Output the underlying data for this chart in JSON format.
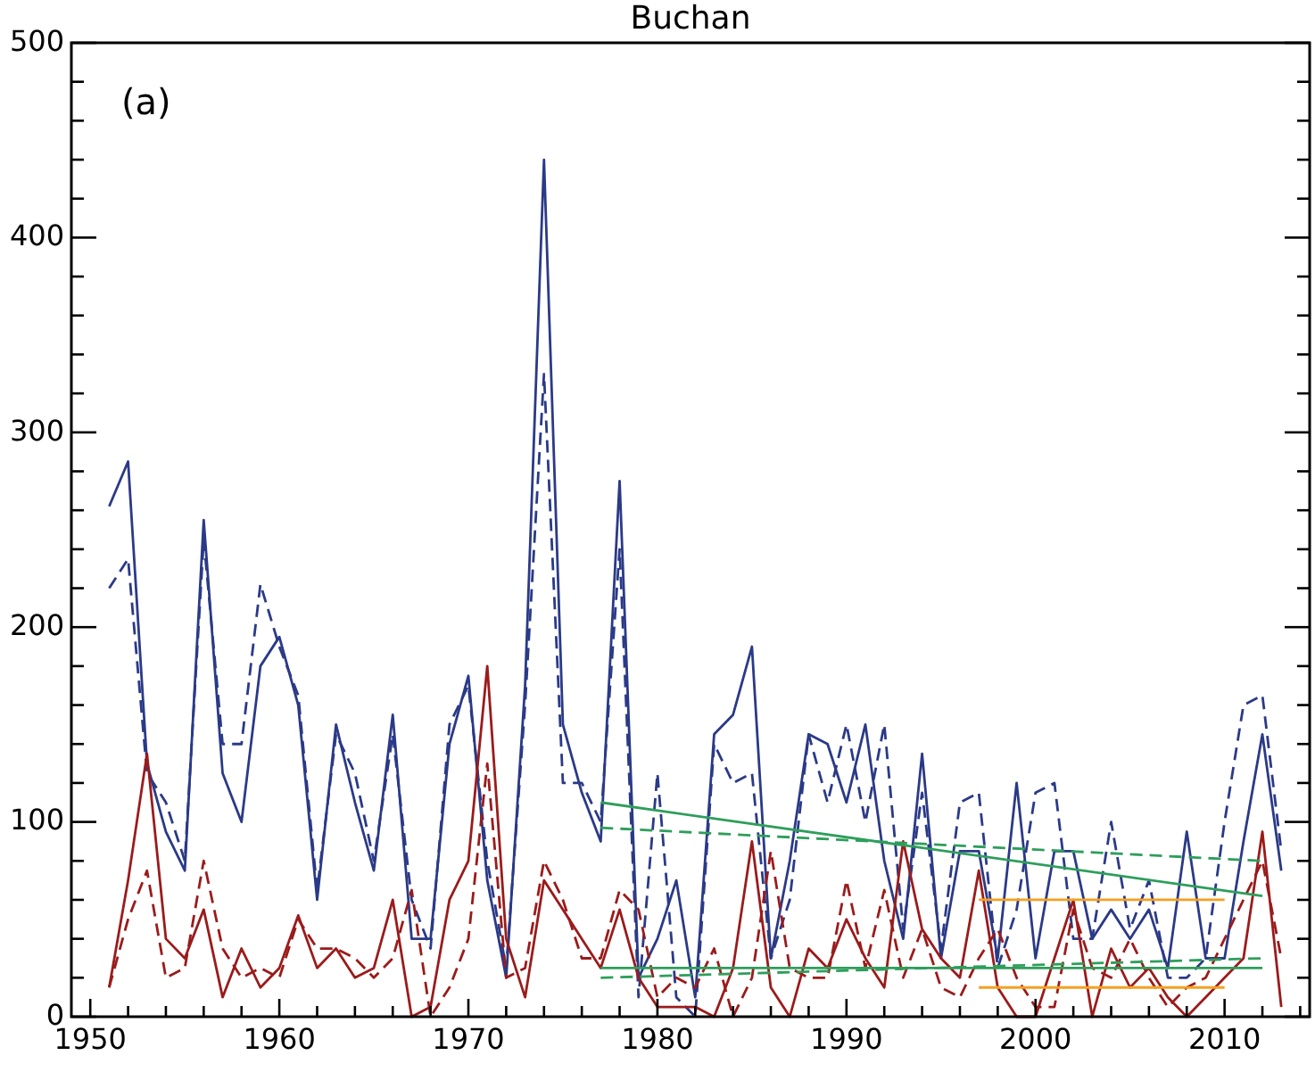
{
  "chart_data": {
    "type": "line",
    "title": "Buchan",
    "annotations": [
      "(a)"
    ],
    "x": [
      1951,
      1952,
      1953,
      1954,
      1955,
      1956,
      1957,
      1958,
      1959,
      1960,
      1961,
      1962,
      1963,
      1964,
      1965,
      1966,
      1967,
      1968,
      1969,
      1970,
      1971,
      1972,
      1973,
      1974,
      1975,
      1976,
      1977,
      1978,
      1979,
      1980,
      1981,
      1982,
      1983,
      1984,
      1985,
      1986,
      1987,
      1988,
      1989,
      1990,
      1991,
      1992,
      1993,
      1994,
      1995,
      1996,
      1997,
      1998,
      1999,
      2000,
      2001,
      2002,
      2003,
      2004,
      2005,
      2006,
      2007,
      2008,
      2009,
      2010,
      2011,
      2012,
      2013
    ],
    "xlim": [
      1949,
      2014.5
    ],
    "xticks": [
      {
        "value": 1950,
        "label": "1950"
      },
      {
        "value": 1952,
        "label": null
      },
      {
        "value": 1954,
        "label": null
      },
      {
        "value": 1956,
        "label": null
      },
      {
        "value": 1958,
        "label": null
      },
      {
        "value": 1960,
        "label": "1960"
      },
      {
        "value": 1962,
        "label": null
      },
      {
        "value": 1964,
        "label": null
      },
      {
        "value": 1966,
        "label": null
      },
      {
        "value": 1968,
        "label": null
      },
      {
        "value": 1970,
        "label": "1970"
      },
      {
        "value": 1972,
        "label": null
      },
      {
        "value": 1974,
        "label": null
      },
      {
        "value": 1976,
        "label": null
      },
      {
        "value": 1978,
        "label": null
      },
      {
        "value": 1980,
        "label": "1980"
      },
      {
        "value": 1982,
        "label": null
      },
      {
        "value": 1984,
        "label": null
      },
      {
        "value": 1986,
        "label": null
      },
      {
        "value": 1988,
        "label": null
      },
      {
        "value": 1990,
        "label": "1990"
      },
      {
        "value": 1992,
        "label": null
      },
      {
        "value": 1994,
        "label": null
      },
      {
        "value": 1996,
        "label": null
      },
      {
        "value": 1998,
        "label": null
      },
      {
        "value": 2000,
        "label": "2000"
      },
      {
        "value": 2002,
        "label": null
      },
      {
        "value": 2004,
        "label": null
      },
      {
        "value": 2006,
        "label": null
      },
      {
        "value": 2008,
        "label": null
      },
      {
        "value": 2010,
        "label": "2010"
      },
      {
        "value": 2012,
        "label": null
      },
      {
        "value": 2014,
        "label": null
      }
    ],
    "ylim": [
      0,
      500
    ],
    "yticks": [
      0,
      {
        "value": 20,
        "label": null
      },
      {
        "value": 40,
        "label": null
      },
      {
        "value": 60,
        "label": null
      },
      {
        "value": 80,
        "label": null
      },
      100,
      {
        "value": 120,
        "label": null
      },
      {
        "value": 140,
        "label": null
      },
      {
        "value": 160,
        "label": null
      },
      {
        "value": 180,
        "label": null
      },
      200,
      {
        "value": 220,
        "label": null
      },
      {
        "value": 240,
        "label": null
      },
      {
        "value": 260,
        "label": null
      },
      {
        "value": 280,
        "label": null
      },
      300,
      {
        "value": 320,
        "label": null
      },
      {
        "value": 340,
        "label": null
      },
      {
        "value": 360,
        "label": null
      },
      {
        "value": 380,
        "label": null
      },
      400,
      {
        "value": 420,
        "label": null
      },
      {
        "value": 440,
        "label": null
      },
      {
        "value": 460,
        "label": null
      },
      {
        "value": 480,
        "label": null
      },
      500
    ],
    "grid": false,
    "series": [
      {
        "color": "#2b3a87",
        "line_style": "solid",
        "values": [
          262,
          285,
          130,
          95,
          75,
          255,
          125,
          100,
          180,
          195,
          160,
          60,
          150,
          110,
          75,
          155,
          40,
          40,
          140,
          175,
          70,
          20,
          170,
          440,
          150,
          115,
          90,
          275,
          20,
          40,
          70,
          10,
          145,
          155,
          190,
          30,
          80,
          145,
          140,
          110,
          150,
          80,
          40,
          135,
          30,
          85,
          85,
          30,
          120,
          30,
          85,
          85,
          40,
          55,
          40,
          55,
          25,
          95,
          30,
          30,
          90,
          145,
          75
        ]
      },
      {
        "color": "#2b3a87",
        "line_style": "dashed",
        "values": [
          220,
          235,
          125,
          110,
          80,
          245,
          140,
          140,
          222,
          190,
          165,
          65,
          145,
          125,
          80,
          145,
          60,
          35,
          150,
          170,
          80,
          25,
          160,
          330,
          120,
          120,
          100,
          240,
          10,
          125,
          10,
          0,
          140,
          120,
          125,
          30,
          60,
          145,
          110,
          150,
          100,
          150,
          45,
          115,
          35,
          110,
          115,
          25,
          55,
          115,
          120,
          40,
          40,
          100,
          45,
          70,
          20,
          20,
          30,
          100,
          160,
          165,
          85
        ]
      },
      {
        "color": "#9b1b1b",
        "line_style": "solid",
        "values": [
          15,
          70,
          135,
          40,
          30,
          55,
          10,
          35,
          15,
          25,
          52,
          25,
          35,
          20,
          25,
          60,
          0,
          5,
          60,
          80,
          180,
          40,
          10,
          70,
          55,
          40,
          25,
          55,
          20,
          5,
          5,
          5,
          0,
          25,
          90,
          15,
          0,
          35,
          25,
          50,
          30,
          15,
          90,
          45,
          30,
          20,
          75,
          15,
          0,
          0,
          30,
          60,
          0,
          35,
          15,
          25,
          10,
          0,
          10,
          20,
          30,
          95,
          5
        ]
      },
      {
        "color": "#9b1b1b",
        "line_style": "dashed",
        "values": [
          15,
          50,
          75,
          20,
          25,
          80,
          35,
          20,
          25,
          20,
          50,
          35,
          35,
          30,
          20,
          30,
          65,
          0,
          15,
          40,
          130,
          20,
          25,
          80,
          60,
          30,
          30,
          65,
          55,
          10,
          20,
          15,
          35,
          0,
          20,
          85,
          25,
          20,
          20,
          70,
          25,
          65,
          20,
          45,
          15,
          10,
          30,
          45,
          20,
          5,
          5,
          55,
          25,
          20,
          40,
          20,
          5,
          15,
          20,
          40,
          60,
          80,
          30
        ]
      },
      {
        "color": "#2e9e5b",
        "line_style": "solid",
        "x": [
          1977,
          2012
        ],
        "values": [
          110,
          62
        ]
      },
      {
        "color": "#2e9e5b",
        "line_style": "dashed",
        "x": [
          1977,
          2012
        ],
        "values": [
          97,
          80
        ]
      },
      {
        "color": "#2e9e5b",
        "line_style": "solid",
        "x": [
          1977,
          2012
        ],
        "values": [
          25,
          25
        ]
      },
      {
        "color": "#2e9e5b",
        "line_style": "dashed",
        "x": [
          1977,
          2012
        ],
        "values": [
          20,
          30
        ]
      },
      {
        "color": "#f5a020",
        "line_style": "solid",
        "x": [
          1997,
          2010
        ],
        "values": [
          60,
          60
        ]
      },
      {
        "color": "#f5a020",
        "line_style": "solid",
        "x": [
          1997,
          2010
        ],
        "values": [
          15,
          15
        ]
      }
    ]
  }
}
